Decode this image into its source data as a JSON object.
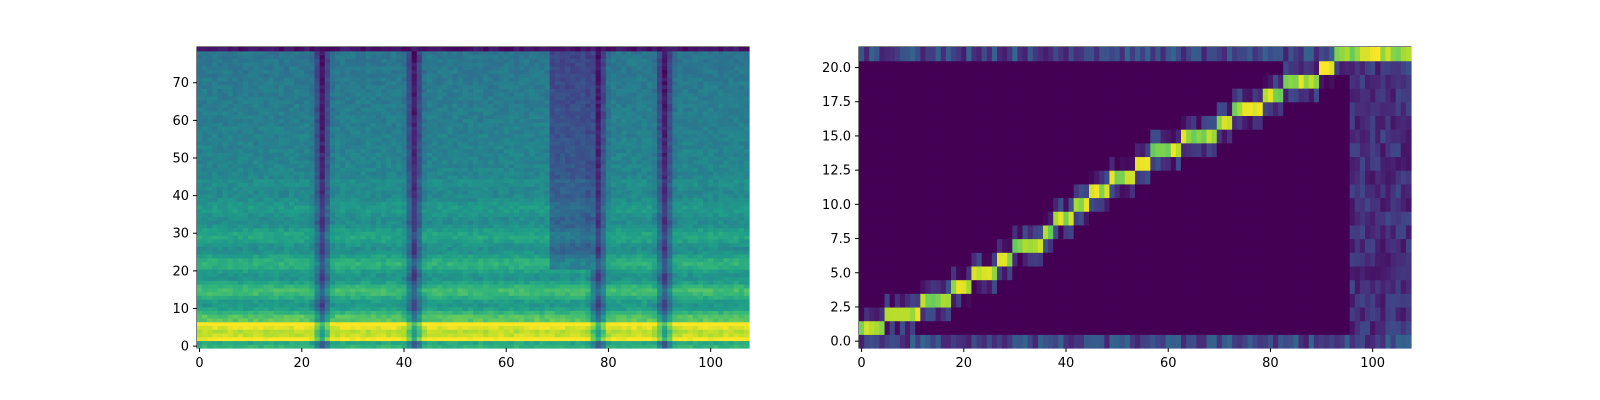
{
  "chart_data": [
    {
      "type": "heatmap",
      "title": "",
      "xlabel": "",
      "ylabel": "",
      "xlim": [
        -0.5,
        107.5
      ],
      "ylim": [
        -0.5,
        79.5
      ],
      "xticks": [
        0,
        20,
        40,
        60,
        80,
        100
      ],
      "yticks": [
        0,
        10,
        20,
        30,
        40,
        50,
        60,
        70
      ],
      "colormap": "viridis",
      "grid": false,
      "description_values": {
        "dark_vertical_bands_at_frames": [
          24,
          42,
          78,
          91
        ],
        "bright_low_band_rows": [
          3,
          6
        ]
      }
    },
    {
      "type": "heatmap",
      "title": "",
      "xlabel": "",
      "ylabel": "",
      "xlim": [
        -0.5,
        107.5
      ],
      "ylim": [
        -0.5,
        21.5
      ],
      "xticks": [
        0,
        20,
        40,
        60,
        80,
        100
      ],
      "yticks": [
        0.0,
        2.5,
        5.0,
        7.5,
        10.0,
        12.5,
        15.0,
        17.5,
        20.0
      ],
      "colormap": "viridis",
      "grid": false,
      "alignment_path": [
        [
          0,
          1
        ],
        [
          3,
          1
        ],
        [
          5,
          2
        ],
        [
          9,
          2
        ],
        [
          12,
          3
        ],
        [
          15,
          3
        ],
        [
          18,
          4
        ],
        [
          20,
          4
        ],
        [
          22,
          5
        ],
        [
          25,
          5
        ],
        [
          27,
          6
        ],
        [
          30,
          7
        ],
        [
          33,
          7
        ],
        [
          36,
          8
        ],
        [
          38,
          9
        ],
        [
          42,
          10
        ],
        [
          45,
          11
        ],
        [
          49,
          12
        ],
        [
          52,
          12
        ],
        [
          54,
          13
        ],
        [
          57,
          14
        ],
        [
          60,
          14
        ],
        [
          63,
          15
        ],
        [
          67,
          15
        ],
        [
          70,
          16
        ],
        [
          73,
          17
        ],
        [
          76,
          17
        ],
        [
          79,
          18
        ],
        [
          83,
          19
        ],
        [
          87,
          19
        ],
        [
          90,
          20
        ],
        [
          93,
          21
        ],
        [
          107,
          21
        ]
      ]
    }
  ],
  "colors": {
    "viridis_dark": "#440154",
    "viridis_mid": "#21918c",
    "viridis_bright": "#fde725"
  }
}
